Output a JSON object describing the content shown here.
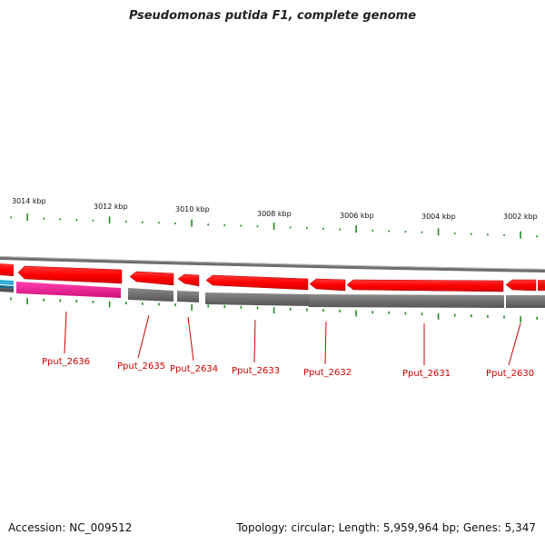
{
  "title": "Pseudomonas putida F1, complete genome",
  "footer": {
    "accession": "Accession: NC_009512",
    "info": "Topology: circular; Length: 5,959,964 bp; Genes: 5,347"
  },
  "ruler": {
    "unit": "kbp",
    "labels": [
      "3014 kbp",
      "3012 kbp",
      "3010 kbp",
      "3008 kbp",
      "3006 kbp",
      "3004 kbp",
      "3002 kbp"
    ]
  },
  "genes": [
    {
      "label": "Pput_2636",
      "strand": "-"
    },
    {
      "label": "Pput_2635",
      "strand": "-"
    },
    {
      "label": "Pput_2634",
      "strand": "-"
    },
    {
      "label": "Pput_2633",
      "strand": "-"
    },
    {
      "label": "Pput_2632",
      "strand": "-"
    },
    {
      "label": "Pput_2631",
      "strand": "-"
    },
    {
      "label": "Pput_2630",
      "strand": "-"
    }
  ],
  "colors": {
    "gene": "#ff0000",
    "gene_dark": "#c80000",
    "label": "#cc0000",
    "tick": "#228b22",
    "backbone": "#888888",
    "feature_grey": "#666666",
    "feature_pink": "#e8208c",
    "feature_cyan": "#30b0d8"
  }
}
